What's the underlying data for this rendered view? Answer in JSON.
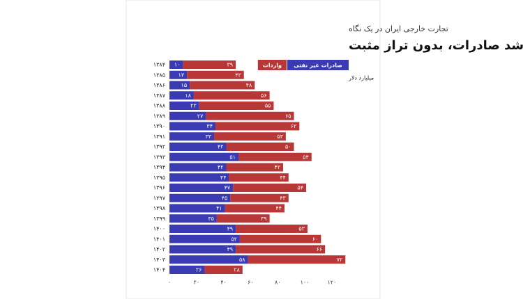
{
  "chart_data": {
    "type": "stacked-barh",
    "subtitle": "تجارت خارجی ایران در یک نگاه",
    "title": "دو دهه رشد صادرات، بدون تراز مثبت",
    "unit": "میلیارد دلار",
    "categories": [
      "۱۳۸۴",
      "۱۳۸۵",
      "۱۳۸۶",
      "۱۳۸۷",
      "۱۳۸۸",
      "۱۳۸۹",
      "۱۳۹۰",
      "۱۳۹۱",
      "۱۳۹۲",
      "۱۳۹۳",
      "۱۳۹۴",
      "۱۳۹۵",
      "۱۳۹۶",
      "۱۳۹۷",
      "۱۳۹۸",
      "۱۳۹۹",
      "۱۴۰۰",
      "۱۴۰۱",
      "۱۴۰۲",
      "۱۴۰۳",
      "۱۴۰۴"
    ],
    "series": [
      {
        "name": "صادرات غیر نفتی",
        "color": "#3a3ab2",
        "values": [
          10,
          13,
          15,
          18,
          22,
          27,
          34,
          33,
          42,
          51,
          42,
          44,
          47,
          45,
          41,
          35,
          49,
          52,
          49,
          58,
          26
        ],
        "value_labels": [
          "۱۰",
          "۱۳",
          "۱۵",
          "۱۸",
          "۲۲",
          "۲۷",
          "۳۴",
          "۳۳",
          "۴۲",
          "۵۱",
          "۴۲",
          "۴۴",
          "۴۷",
          "۴۵",
          "۴۱",
          "۳۵",
          "۴۹",
          "۵۲",
          "۴۹",
          "۵۸",
          "۲۶"
        ]
      },
      {
        "name": "واردات",
        "color": "#b83838",
        "values": [
          39,
          42,
          48,
          56,
          55,
          65,
          62,
          53,
          50,
          54,
          42,
          44,
          54,
          43,
          44,
          39,
          53,
          60,
          66,
          72,
          28
        ],
        "value_labels": [
          "۳۹",
          "۴۲",
          "۴۸",
          "۵۶",
          "۵۵",
          "۶۵",
          "۶۲",
          "۵۳",
          "۵۰",
          "۵۴",
          "۴۲",
          "۴۴",
          "۵۴",
          "۴۳",
          "۴۴",
          "۳۹",
          "۵۳",
          "۶۰",
          "۶۶",
          "۷۲",
          "۲۸"
        ]
      }
    ],
    "xlim": [
      0,
      135
    ],
    "xticks": [
      {
        "value": 0,
        "label": "۰"
      },
      {
        "value": 20,
        "label": "۲۰"
      },
      {
        "value": 40,
        "label": "۴۰"
      },
      {
        "value": 60,
        "label": "۶۰"
      },
      {
        "value": 80,
        "label": "۸۰"
      },
      {
        "value": 100,
        "label": "۱۰۰"
      },
      {
        "value": 120,
        "label": "۱۲۰"
      }
    ]
  }
}
